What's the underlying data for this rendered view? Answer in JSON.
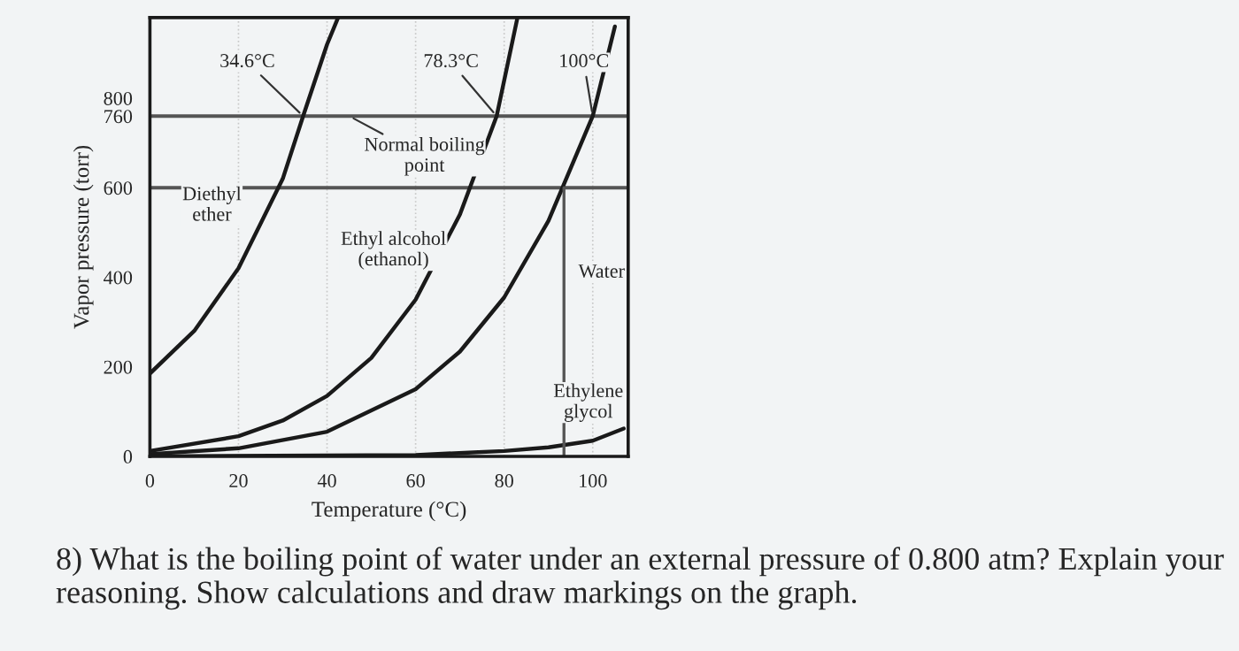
{
  "chart_data": {
    "type": "line",
    "xlabel": "Temperature (°C)",
    "ylabel": "Vapor pressure (torr)",
    "xlim": [
      0,
      108
    ],
    "ylim": [
      0,
      980
    ],
    "xticks": [
      0,
      20,
      40,
      60,
      80,
      100
    ],
    "yticks": [
      0,
      200,
      400,
      600,
      760,
      800
    ],
    "grid": "x",
    "legend": false,
    "marker": "none",
    "line_style": "solid",
    "series": [
      {
        "name": "Diethyl ether",
        "color": "#1a1a1a",
        "x": [
          0,
          10,
          20,
          30,
          34.6,
          40,
          42.5
        ],
        "values": [
          185,
          280,
          420,
          620,
          760,
          920,
          980
        ]
      },
      {
        "name": "Ethyl alcohol (ethanol)",
        "color": "#1a1a1a",
        "x": [
          0,
          20,
          30,
          40,
          50,
          60,
          70,
          78.3,
          83
        ],
        "values": [
          12,
          45,
          80,
          135,
          220,
          350,
          540,
          760,
          980
        ]
      },
      {
        "name": "Water",
        "color": "#1a1a1a",
        "x": [
          0,
          20,
          40,
          60,
          70,
          80,
          90,
          100,
          105
        ],
        "values": [
          5,
          18,
          55,
          150,
          234,
          355,
          526,
          760,
          960
        ]
      },
      {
        "name": "Ethylene glycol",
        "color": "#1a1a1a",
        "x": [
          0,
          60,
          80,
          90,
          100,
          107
        ],
        "values": [
          0,
          3,
          12,
          20,
          35,
          62
        ]
      },
      {
        "color": "#555555",
        "x": [
          93.5,
          93.5
        ],
        "values": [
          600,
          0
        ]
      }
    ],
    "ref_lines": [
      {
        "axis": "y",
        "value": 760,
        "color": "#555555",
        "label": "Normal boiling point"
      },
      {
        "axis": "y",
        "value": 600,
        "color": "#555555"
      }
    ],
    "annotations": [
      {
        "text": "34.6°C",
        "x": 34.6,
        "y": 760
      },
      {
        "text": "78.3°C",
        "x": 78.3,
        "y": 760
      },
      {
        "text": "100°C",
        "x": 100,
        "y": 760
      },
      "8) What is the boiling point of water under an external pressure of 0.800 atm? Explain your reasoning. Show calculations and draw markings on the graph."
    ]
  }
}
